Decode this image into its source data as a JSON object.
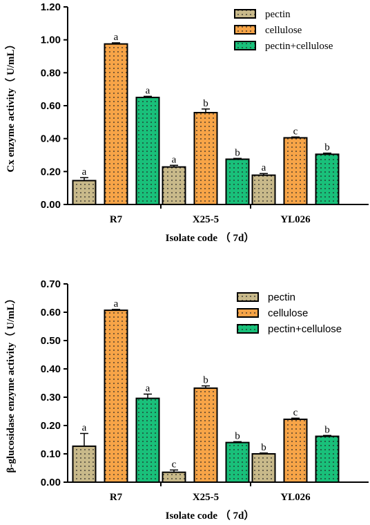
{
  "colors": {
    "pectin": "#c8b98a",
    "cellulose": "#f7a447",
    "pectin_cellulose": "#19c07a"
  },
  "chart_data": [
    {
      "type": "bar",
      "categories": [
        "R7",
        "X25-5",
        "YL026"
      ],
      "xlabel": "Isolate code （ 7d）",
      "ylabel": "Cx enzyme activity（ U/mL）",
      "ylim": [
        0,
        1.2
      ],
      "yticks": [
        "0.00",
        "0.20",
        "0.40",
        "0.60",
        "0.80",
        "1.00",
        "1.20"
      ],
      "legend_position": "top-right",
      "grid": false,
      "series": [
        {
          "name": "pectin",
          "values": [
            0.145,
            0.228,
            0.178
          ],
          "errors": [
            0.018,
            0.01,
            0.01
          ],
          "labels": [
            "a",
            "a",
            "a"
          ]
        },
        {
          "name": "cellulose",
          "values": [
            0.975,
            0.558,
            0.405
          ],
          "errors": [
            0.007,
            0.022,
            0.005
          ],
          "labels": [
            "a",
            "b",
            "c"
          ]
        },
        {
          "name": "pectin+cellulose",
          "values": [
            0.65,
            0.275,
            0.305
          ],
          "errors": [
            0.007,
            0.005,
            0.007
          ],
          "labels": [
            "a",
            "b",
            "b"
          ]
        }
      ]
    },
    {
      "type": "bar",
      "categories": [
        "R7",
        "X25-5",
        "YL026"
      ],
      "xlabel": "Isolate code （ 7d）",
      "ylabel": "β-glucosidase enzyme activity（ U/mL）",
      "ylim": [
        0,
        0.7
      ],
      "yticks": [
        "0.00",
        "0.10",
        "0.20",
        "0.30",
        "0.40",
        "0.50",
        "0.60",
        "0.70"
      ],
      "legend_position": "top-right",
      "grid": false,
      "series": [
        {
          "name": "pectin",
          "values": [
            0.127,
            0.035,
            0.1
          ],
          "errors": [
            0.045,
            0.008,
            0.003
          ],
          "labels": [
            "a",
            "c",
            "b"
          ]
        },
        {
          "name": "cellulose",
          "values": [
            0.607,
            0.332,
            0.222
          ],
          "errors": [
            0.003,
            0.008,
            0.004
          ],
          "labels": [
            "a",
            "b",
            "c"
          ]
        },
        {
          "name": "pectin+cellulose",
          "values": [
            0.296,
            0.14,
            0.162
          ],
          "errors": [
            0.015,
            0.003,
            0.003
          ],
          "labels": [
            "a",
            "b",
            "b"
          ]
        }
      ]
    }
  ]
}
